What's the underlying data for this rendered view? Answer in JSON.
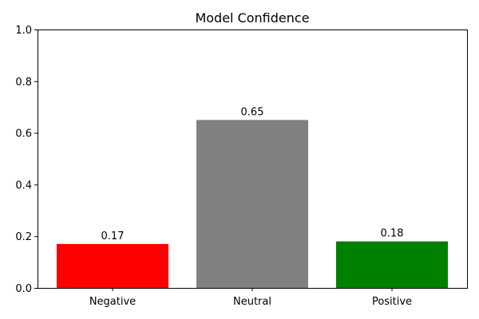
{
  "chart_data": {
    "type": "bar",
    "title": "Model Confidence",
    "xlabel": "",
    "ylabel": "",
    "categories": [
      "Negative",
      "Neutral",
      "Positive"
    ],
    "values": [
      0.17,
      0.65,
      0.18
    ],
    "data_labels": [
      "0.17",
      "0.65",
      "0.18"
    ],
    "colors": [
      "#ff0000",
      "#808080",
      "#008000"
    ],
    "ylim": [
      0,
      1.0
    ],
    "yticks": [
      "0.0",
      "0.2",
      "0.4",
      "0.6",
      "0.8",
      "1.0"
    ],
    "grid": false,
    "legend": "none"
  }
}
